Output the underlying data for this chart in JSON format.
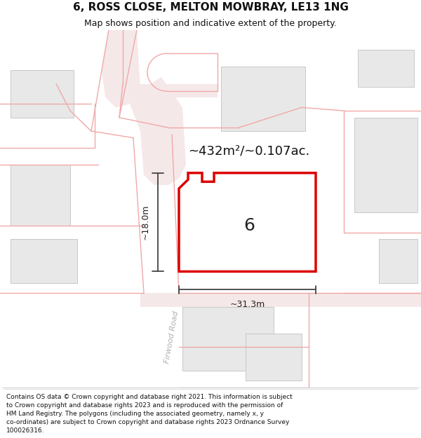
{
  "title": "6, ROSS CLOSE, MELTON MOWBRAY, LE13 1NG",
  "subtitle": "Map shows position and indicative extent of the property.",
  "footer": "Contains OS data © Crown copyright and database right 2021. This information is subject\nto Crown copyright and database rights 2023 and is reproduced with the permission of\nHM Land Registry. The polygons (including the associated geometry, namely x, y\nco-ordinates) are subject to Crown copyright and database rights 2023 Ordnance Survey\n100026316.",
  "bg_color": "#ffffff",
  "map_bg": "#f8f8f8",
  "road_line_color": "#f0a8a8",
  "road_fill_color": "#f5e8e8",
  "building_fill": "#e8e8e8",
  "building_edge": "#c8c8c8",
  "highlight_color": "#dd0000",
  "dim_line_color": "#444444",
  "road_label_color": "#aaaaaa",
  "area_text": "~432m²/~0.107ac.",
  "label_6": "6",
  "dim_height": "~18.0m",
  "dim_width": "~31.3m",
  "road_label": "Firwood Road",
  "figsize": [
    6.0,
    6.25
  ],
  "dpi": 100,
  "title_fontsize": 11,
  "subtitle_fontsize": 9,
  "footer_fontsize": 6.5,
  "area_fontsize": 13,
  "label_fontsize": 18,
  "dim_fontsize": 9,
  "road_label_fontsize": 8
}
